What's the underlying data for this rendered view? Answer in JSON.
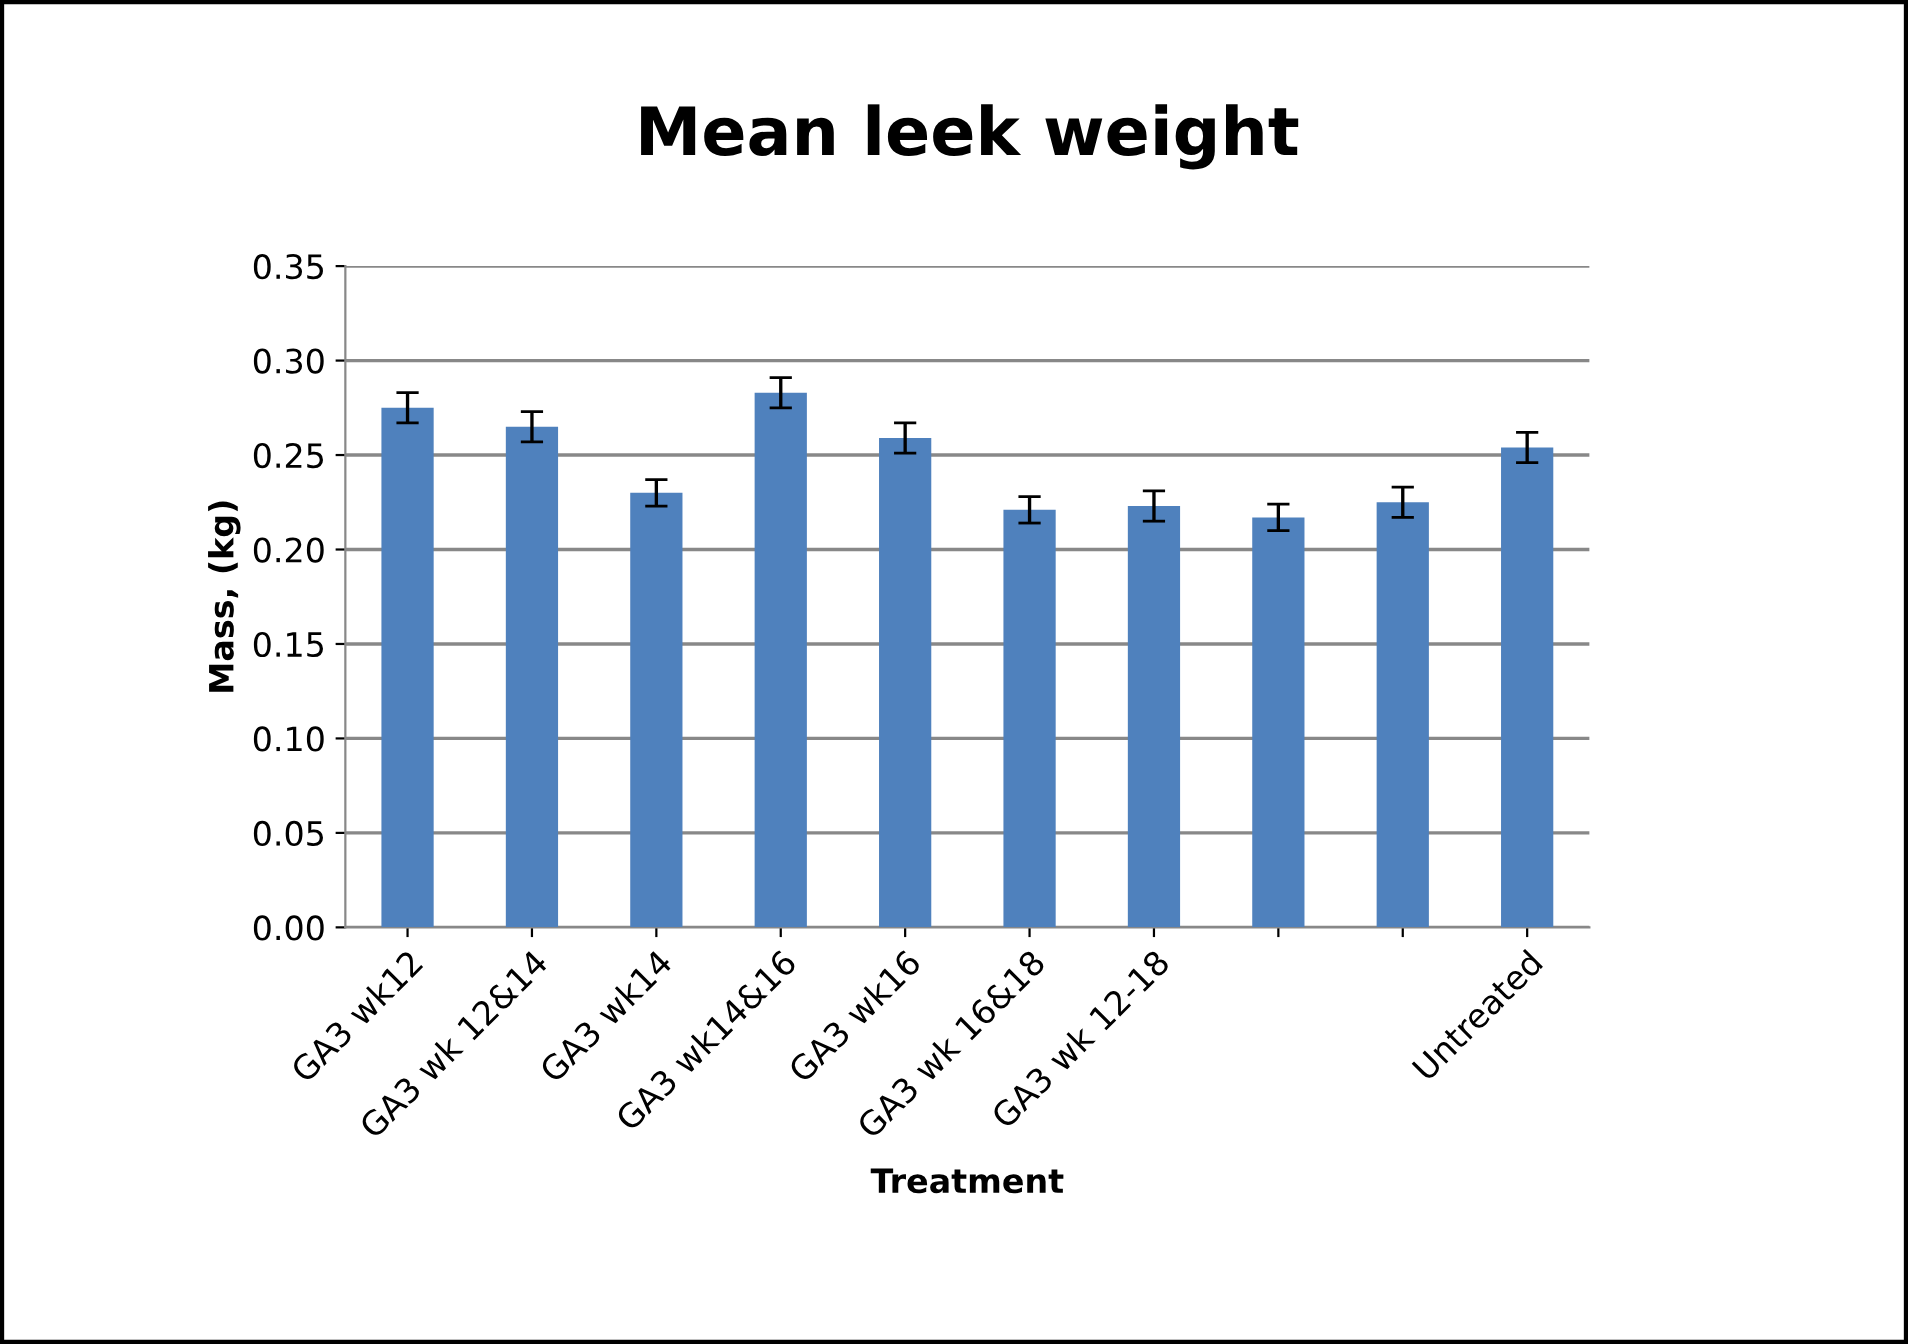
{
  "chart_data": {
    "type": "bar",
    "title": "Mean leek weight",
    "xlabel": "Treatment",
    "ylabel": "Mass, (kg)",
    "categories": [
      "GA3 wk12",
      "GA3 wk 12&14",
      "GA3 wk14",
      "GA3 wk14&16",
      "GA3 wk16",
      "GA3 wk 16&18",
      "GA3 wk 12-18",
      null,
      null,
      "Untreated"
    ],
    "values": [
      0.275,
      0.265,
      0.23,
      0.283,
      0.259,
      0.221,
      0.223,
      0.217,
      0.225,
      0.254
    ],
    "errors": [
      0.008,
      0.008,
      0.007,
      0.008,
      0.008,
      0.007,
      0.008,
      0.007,
      0.008,
      0.008
    ],
    "color": "#4f81bd",
    "ylim": [
      0,
      0.35
    ],
    "yticks": [
      {
        "value": 0,
        "label": "0.00"
      },
      {
        "value": 0.05,
        "label": "0.05"
      },
      {
        "value": 0.1,
        "label": "0.10"
      },
      {
        "value": 0.15,
        "label": "0.15"
      },
      {
        "value": 0.2,
        "label": "0.20"
      },
      {
        "value": 0.25,
        "label": "0.25"
      },
      {
        "value": 0.3,
        "label": "0.30"
      },
      {
        "value": 0.35,
        "label": "0.35"
      }
    ],
    "grid": "y",
    "legend": false
  }
}
